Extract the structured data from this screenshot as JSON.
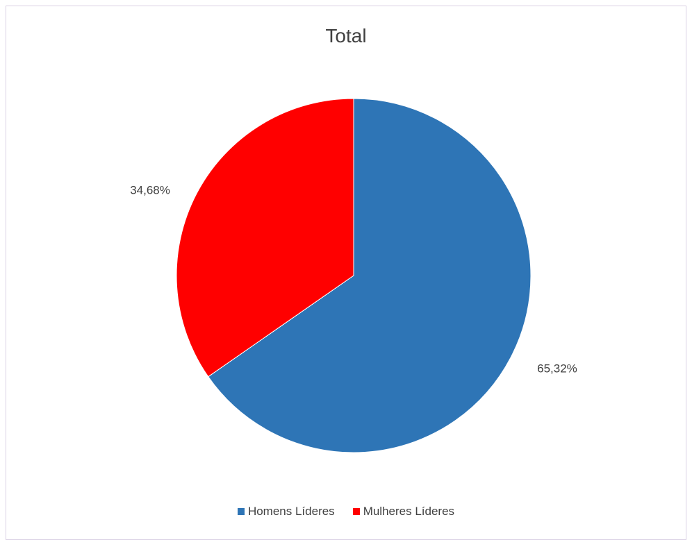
{
  "chart_data": {
    "type": "pie",
    "title": "Total",
    "categories": [
      "Homens Líderes",
      "Mulheres Líderes"
    ],
    "values": [
      65.32,
      34.68
    ],
    "data_labels": [
      "65,32%",
      "34,68%"
    ],
    "colors": [
      "#2E75B6",
      "#FF0000"
    ],
    "legend_position": "bottom",
    "start_angle_deg": 0,
    "direction": "clockwise"
  }
}
